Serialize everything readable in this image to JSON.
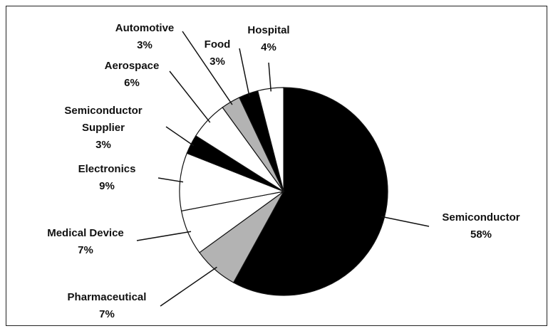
{
  "chart_data": {
    "type": "pie",
    "categories": [
      "Semiconductor",
      "Pharmaceutical",
      "Medical Device",
      "Electronics",
      "Semiconductor Supplier",
      "Aerospace",
      "Automotive",
      "Food",
      "Hospital"
    ],
    "values": [
      58,
      7,
      7,
      9,
      3,
      6,
      3,
      3,
      4
    ],
    "value_labels": [
      "58%",
      "7%",
      "7%",
      "9%",
      "3%",
      "6%",
      "3%",
      "3%",
      "4%"
    ],
    "colors": [
      "#000000",
      "#b3b3b3",
      "#ffffff",
      "#ffffff",
      "#000000",
      "#ffffff",
      "#b3b3b3",
      "#000000",
      "#ffffff"
    ]
  }
}
